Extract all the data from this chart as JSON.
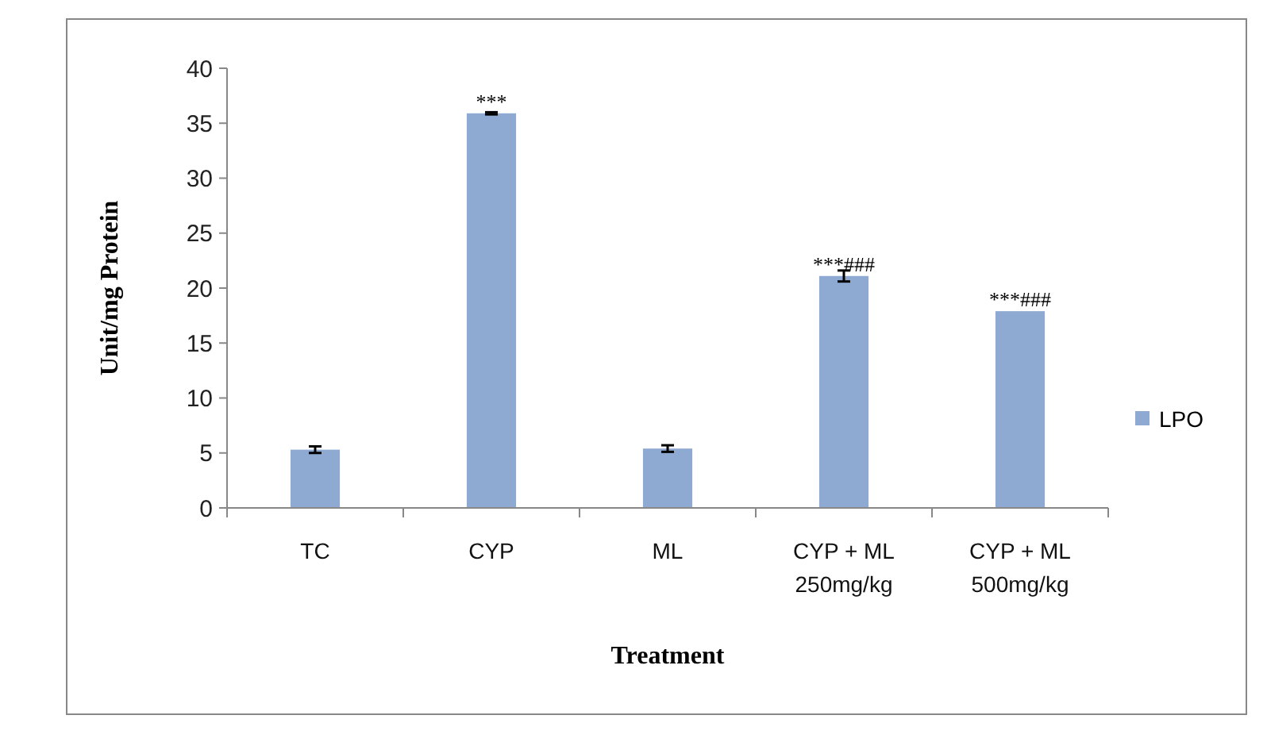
{
  "chart_data": {
    "type": "bar",
    "xlabel": "Treatment",
    "ylabel": "Unit/mg Protein",
    "categories": [
      "TC",
      "CYP",
      "ML",
      "CYP + ML 250mg/kg",
      "CYP + ML 500mg/kg"
    ],
    "series": [
      {
        "name": "LPO",
        "color": "#8faad2",
        "values": [
          5.3,
          35.9,
          5.4,
          21.1,
          17.9
        ],
        "errors": [
          0.3,
          0.1,
          0.3,
          0.5,
          null
        ]
      }
    ],
    "ylim": [
      0,
      40
    ],
    "yticks": [
      0,
      5,
      10,
      15,
      20,
      25,
      30,
      35,
      40
    ],
    "legend": "right",
    "annotations": [
      {
        "text": "***",
        "x": "CYP",
        "y": 35.9
      },
      {
        "text": "***###",
        "x": "CYP + ML 250mg/kg",
        "y": 21.1
      },
      {
        "text": "***###",
        "x": "CYP + ML 500mg/kg",
        "y": 17.9
      }
    ]
  }
}
